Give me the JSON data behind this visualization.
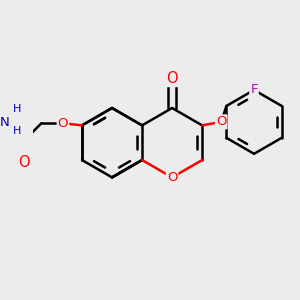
{
  "bg_color": "#ececec",
  "bond_color": "#000000",
  "bond_width": 1.8,
  "atom_colors": {
    "O": "#ff0000",
    "N": "#0000bb",
    "F": "#bb00bb",
    "C": "#000000"
  },
  "font_size": 9.5,
  "fig_width": 3.0,
  "fig_height": 3.0,
  "xlim": [
    -1.35,
    1.55
  ],
  "ylim": [
    -1.1,
    1.1
  ]
}
